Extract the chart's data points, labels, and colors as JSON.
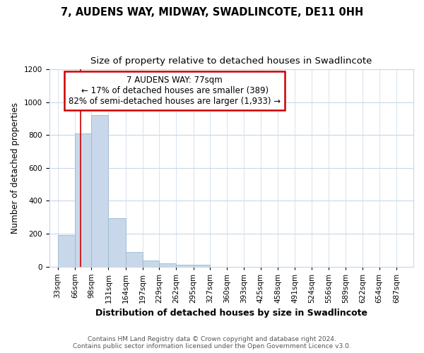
{
  "title1": "7, AUDENS WAY, MIDWAY, SWADLINCOTE, DE11 0HH",
  "title2": "Size of property relative to detached houses in Swadlincote",
  "xlabel": "Distribution of detached houses by size in Swadlincote",
  "ylabel": "Number of detached properties",
  "bar_categories": [
    "33sqm",
    "66sqm",
    "98sqm",
    "131sqm",
    "164sqm",
    "197sqm",
    "229sqm",
    "262sqm",
    "295sqm",
    "327sqm",
    "360sqm",
    "393sqm",
    "425sqm",
    "458sqm",
    "491sqm",
    "524sqm",
    "556sqm",
    "589sqm",
    "622sqm",
    "654sqm",
    "687sqm"
  ],
  "bar_values": [
    193,
    810,
    920,
    295,
    90,
    37,
    18,
    10,
    10,
    0,
    0,
    0,
    0,
    0,
    0,
    0,
    0,
    0,
    0,
    0,
    0
  ],
  "bar_color": "#c8d8ea",
  "bar_edgecolor": "#9ab8d0",
  "property_line_x": 77,
  "property_line_color": "#cc0000",
  "annotation_line1": "7 AUDENS WAY: 77sqm",
  "annotation_line2": "← 17% of detached houses are smaller (389)",
  "annotation_line3": "82% of semi-detached houses are larger (1,933) →",
  "annotation_box_color": "#cc0000",
  "ylim": [
    0,
    1200
  ],
  "yticks": [
    0,
    200,
    400,
    600,
    800,
    1000,
    1200
  ],
  "footer1": "Contains HM Land Registry data © Crown copyright and database right 2024.",
  "footer2": "Contains public sector information licensed under the Open Government Licence v3.0.",
  "background_color": "#ffffff",
  "grid_color": "#c8d8e8",
  "title1_fontsize": 10.5,
  "title2_fontsize": 9.5,
  "xlabel_fontsize": 9,
  "ylabel_fontsize": 8.5,
  "tick_fontsize": 7.5,
  "footer_fontsize": 6.5,
  "annotation_fontsize": 8.5,
  "bin_starts": [
    33,
    66,
    98,
    131,
    164,
    197,
    229,
    262,
    295,
    327,
    360,
    393,
    425,
    458,
    491,
    524,
    556,
    589,
    622,
    654,
    687
  ],
  "bin_widths": [
    33,
    32,
    33,
    33,
    33,
    32,
    33,
    33,
    32,
    33,
    33,
    32,
    33,
    33,
    33,
    32,
    33,
    33,
    32,
    33,
    33
  ],
  "xlim_left": 16.5,
  "xlim_right": 720
}
